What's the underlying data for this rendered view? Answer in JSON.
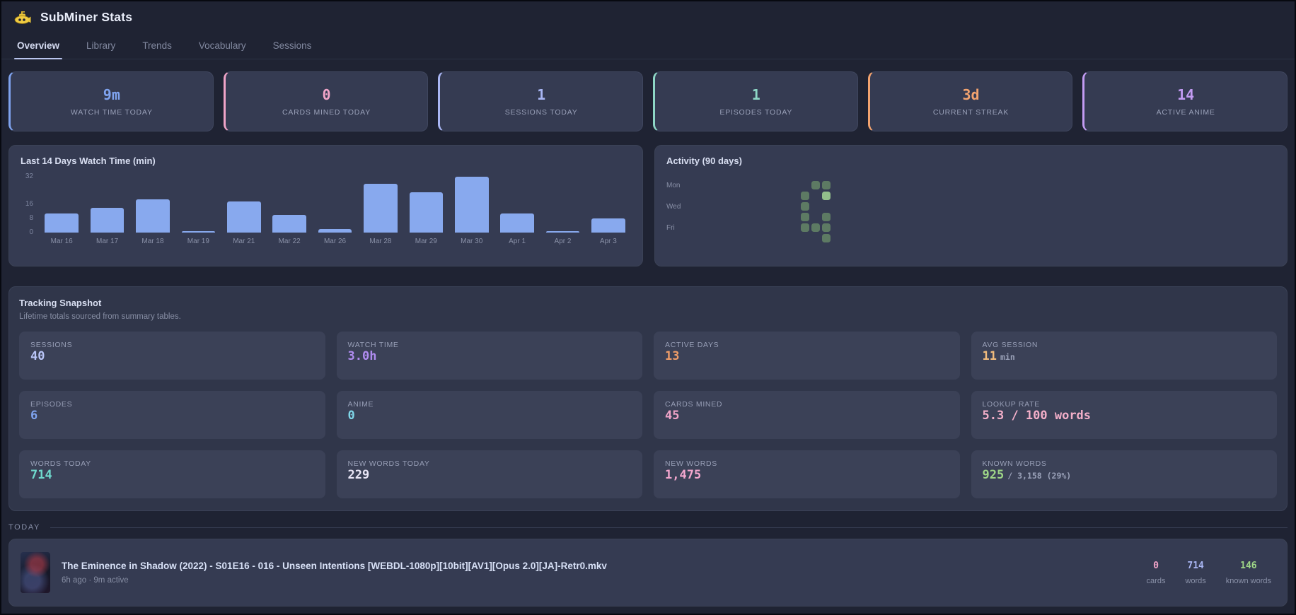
{
  "header": {
    "title": "SubMiner Stats",
    "icon": "submarine-icon"
  },
  "tabs": [
    {
      "label": "Overview",
      "active": true
    },
    {
      "label": "Library",
      "active": false
    },
    {
      "label": "Trends",
      "active": false
    },
    {
      "label": "Vocabulary",
      "active": false
    },
    {
      "label": "Sessions",
      "active": false
    }
  ],
  "stat_cards": [
    {
      "label": "WATCH TIME TODAY",
      "value": "9m",
      "color": "#7fa3ef"
    },
    {
      "label": "CARDS MINED TODAY",
      "value": "0",
      "color": "#f0a4c8"
    },
    {
      "label": "SESSIONS TODAY",
      "value": "1",
      "color": "#a9b6f4"
    },
    {
      "label": "EPISODES TODAY",
      "value": "1",
      "color": "#8ed7c6"
    },
    {
      "label": "CURRENT STREAK",
      "value": "3d",
      "color": "#f3a36f"
    },
    {
      "label": "ACTIVE ANIME",
      "value": "14",
      "color": "#c29bf2"
    }
  ],
  "chart_data": [
    {
      "type": "bar",
      "title": "Last 14 Days Watch Time (min)",
      "categories": [
        "Mar 16",
        "Mar 17",
        "Mar 18",
        "Mar 19",
        "Mar 21",
        "Mar 22",
        "Mar 26",
        "Mar 28",
        "Mar 29",
        "Mar 30",
        "Apr 1",
        "Apr 2",
        "Apr 3"
      ],
      "values": [
        11,
        14,
        19,
        1,
        18,
        10,
        2,
        28,
        23,
        32,
        11,
        1,
        8
      ],
      "xlabel": "",
      "ylabel": "",
      "yticks": [
        32,
        16,
        8,
        0
      ],
      "ylim": [
        0,
        34
      ],
      "grid": false,
      "bar_color": "#88a9ee"
    },
    {
      "type": "heatmap",
      "title": "Activity (90 days)",
      "rows": 7,
      "columns": 13,
      "day_labels": [
        {
          "label": "Mon",
          "row": 1
        },
        {
          "label": "Wed",
          "row": 3
        },
        {
          "label": "Fri",
          "row": 5
        }
      ],
      "level_colors": {
        "1": "#5d7a63",
        "2": "#92be8b"
      },
      "cells": [
        {
          "row": 1,
          "col": 11,
          "level": 1
        },
        {
          "row": 1,
          "col": 12,
          "level": 1
        },
        {
          "row": 2,
          "col": 10,
          "level": 1
        },
        {
          "row": 2,
          "col": 12,
          "level": 2
        },
        {
          "row": 3,
          "col": 10,
          "level": 1
        },
        {
          "row": 4,
          "col": 10,
          "level": 1
        },
        {
          "row": 4,
          "col": 12,
          "level": 1
        },
        {
          "row": 5,
          "col": 10,
          "level": 1
        },
        {
          "row": 5,
          "col": 11,
          "level": 1
        },
        {
          "row": 5,
          "col": 12,
          "level": 1
        },
        {
          "row": 6,
          "col": 12,
          "level": 1
        }
      ]
    }
  ],
  "snapshot": {
    "title": "Tracking Snapshot",
    "subtitle": "Lifetime totals sourced from summary tables.",
    "tiles": [
      {
        "label": "SESSIONS",
        "value": "40",
        "suffix": "",
        "color": "#b9c5f7"
      },
      {
        "label": "WATCH TIME",
        "value": "3.0h",
        "suffix": "",
        "color": "#b08cf0"
      },
      {
        "label": "ACTIVE DAYS",
        "value": "13",
        "suffix": "",
        "color": "#f09d68"
      },
      {
        "label": "AVG SESSION",
        "value": "11",
        "suffix": "min",
        "color": "#f2bc7d"
      },
      {
        "label": "EPISODES",
        "value": "6",
        "suffix": "",
        "color": "#7fa3ef"
      },
      {
        "label": "ANIME",
        "value": "0",
        "suffix": "",
        "color": "#7fd6e8"
      },
      {
        "label": "CARDS MINED",
        "value": "45",
        "suffix": "",
        "color": "#f0a4c8"
      },
      {
        "label": "LOOKUP RATE",
        "value": "5.3 / 100 words",
        "suffix": "",
        "color": "#f3afc9"
      },
      {
        "label": "WORDS TODAY",
        "value": "714",
        "suffix": "",
        "color": "#6fd9cd"
      },
      {
        "label": "NEW WORDS TODAY",
        "value": "229",
        "suffix": "",
        "color": "#e9e6f7"
      },
      {
        "label": "NEW WORDS",
        "value": "1,475",
        "suffix": "",
        "color": "#f4a7cf"
      },
      {
        "label": "KNOWN WORDS",
        "value": "925",
        "suffix": "/ 3,158 (29%)",
        "color": "#9ed687"
      }
    ]
  },
  "today": {
    "section_label": "TODAY",
    "episode": {
      "title": "The Eminence in Shadow (2022) - S01E16 - 016 - Unseen Intentions [WEBDL-1080p][10bit][AV1][Opus 2.0][JA]-Retr0.mkv",
      "meta": "6h ago · 9m active",
      "stats": [
        {
          "value": "0",
          "label": "cards",
          "color": "#f0a4c8"
        },
        {
          "value": "714",
          "label": "words",
          "color": "#a9b6f4"
        },
        {
          "value": "146",
          "label": "known words",
          "color": "#9ed687"
        }
      ]
    }
  }
}
